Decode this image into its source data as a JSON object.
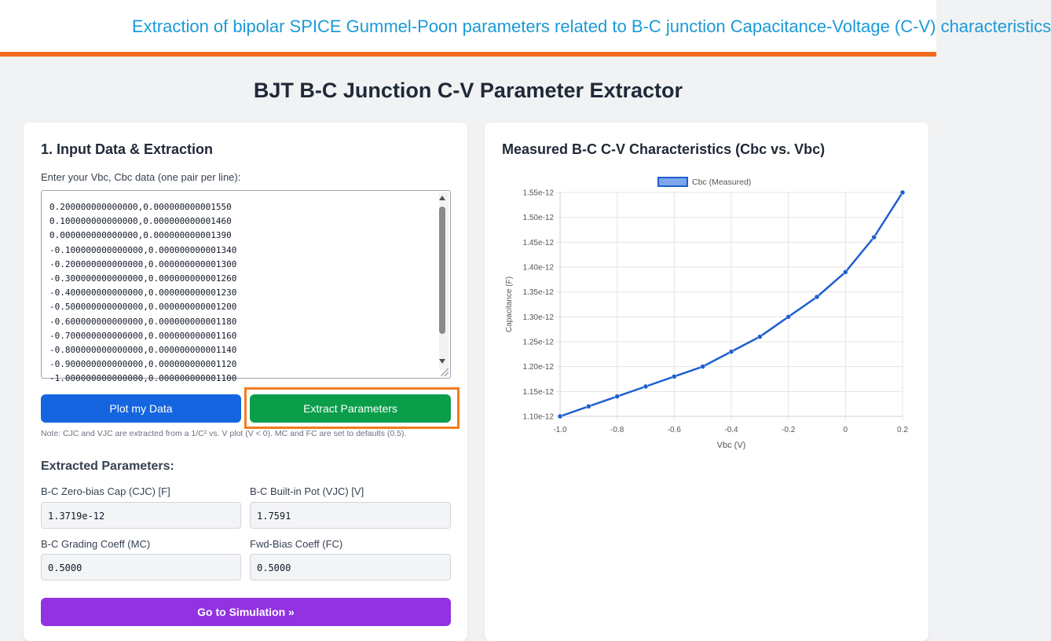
{
  "banner": {
    "title": "Extraction of bipolar SPICE Gummel-Poon parameters related to B-C junction Capacitance-Voltage (C-V) characteristics"
  },
  "page_title": "BJT B-C Junction C-V Parameter Extractor",
  "input_panel": {
    "heading": "1. Input Data & Extraction",
    "textarea_label": "Enter your Vbc, Cbc data (one pair per line):",
    "textarea_lines": [
      "0.200000000000000,0.000000000001550",
      "0.100000000000000,0.000000000001460",
      "0.000000000000000,0.000000000001390",
      "-0.100000000000000,0.000000000001340",
      "-0.200000000000000,0.000000000001300",
      "-0.300000000000000,0.000000000001260",
      "-0.400000000000000,0.000000000001230",
      "-0.500000000000000,0.000000000001200",
      "-0.600000000000000,0.000000000001180",
      "-0.700000000000000,0.000000000001160",
      "-0.800000000000000,0.000000000001140",
      "-0.900000000000000,0.000000000001120",
      "-1.000000000000000,0.000000000001100"
    ],
    "plot_button": "Plot my Data",
    "extract_button": "Extract Parameters",
    "note": "Note: CJC and VJC are extracted from a 1/C² vs. V plot (V < 0). MC and FC are set to defaults (0.5).",
    "extracted_heading": "Extracted Parameters:",
    "fields": {
      "cjc": {
        "label": "B-C Zero-bias Cap (CJC) [F]",
        "value": "1.3719e-12"
      },
      "vjc": {
        "label": "B-C Built-in Pot (VJC) [V]",
        "value": "1.7591"
      },
      "mc": {
        "label": "B-C Grading Coeff (MC)",
        "value": "0.5000"
      },
      "fc": {
        "label": "Fwd-Bias Coeff (FC)",
        "value": "0.5000"
      }
    },
    "simulate_button": "Go to Simulation »"
  },
  "chart_panel": {
    "heading": "Measured B-C C-V Characteristics (Cbc vs. Vbc)"
  },
  "chart_data": {
    "type": "line",
    "title": "Measured B-C C-V Characteristics (Cbc vs. Vbc)",
    "xlabel": "Vbc (V)",
    "ylabel": "Capacitance (F)",
    "xlim": [
      -1.0,
      0.2
    ],
    "ylim": [
      1.1e-12,
      1.55e-12
    ],
    "x_ticks": [
      "-1.0",
      "-0.8",
      "-0.6",
      "-0.4",
      "-0.2",
      "0",
      "0.2"
    ],
    "x_tick_values": [
      -1.0,
      -0.8,
      -0.6,
      -0.4,
      -0.2,
      0,
      0.2
    ],
    "y_ticks": [
      "1.10e-12",
      "1.15e-12",
      "1.20e-12",
      "1.25e-12",
      "1.30e-12",
      "1.35e-12",
      "1.40e-12",
      "1.45e-12",
      "1.50e-12",
      "1.55e-12"
    ],
    "y_tick_values": [
      1.1e-12,
      1.15e-12,
      1.2e-12,
      1.25e-12,
      1.3e-12,
      1.35e-12,
      1.4e-12,
      1.45e-12,
      1.5e-12,
      1.55e-12
    ],
    "grid": true,
    "legend_placement": "top-center",
    "series": [
      {
        "name": "Cbc (Measured)",
        "color": "#1d5fd0",
        "x": [
          -1.0,
          -0.9,
          -0.8,
          -0.7,
          -0.6,
          -0.5,
          -0.4,
          -0.3,
          -0.2,
          -0.1,
          0.0,
          0.1,
          0.2
        ],
        "y": [
          1.1e-12,
          1.12e-12,
          1.14e-12,
          1.16e-12,
          1.18e-12,
          1.2e-12,
          1.23e-12,
          1.26e-12,
          1.3e-12,
          1.34e-12,
          1.39e-12,
          1.46e-12,
          1.55e-12
        ]
      }
    ]
  }
}
